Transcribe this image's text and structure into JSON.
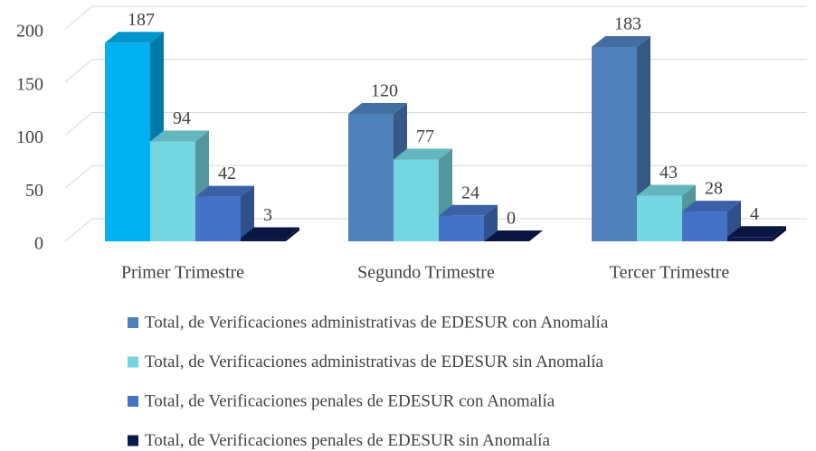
{
  "chart_data": {
    "type": "bar3d",
    "categories": [
      "Primer Trimestre",
      "Segundo Trimestre",
      "Tercer Trimestre"
    ],
    "series": [
      {
        "name": "Total, de Verificaciones administrativas de EDESUR con Anomalía",
        "color": "#4f81bd",
        "point_colors": [
          "#00b0f0",
          "#4f81bd",
          "#4f81bd"
        ],
        "values": [
          187,
          120,
          183
        ]
      },
      {
        "name": "Total, de Verificaciones administrativas de EDESUR sin Anomalía",
        "color": "#76d6df",
        "values": [
          94,
          77,
          43
        ]
      },
      {
        "name": "Total, de Verificaciones penales de EDESUR con Anomalía",
        "color": "#4472c4",
        "values": [
          42,
          24,
          28
        ]
      },
      {
        "name": "Total, de Verificaciones penales de EDESUR sin Anomalía",
        "color": "#0b1a4d",
        "values": [
          3,
          0,
          4
        ]
      }
    ],
    "ylim": [
      0,
      200
    ],
    "yticks": [
      0,
      50,
      100,
      150,
      200
    ],
    "grid": true
  }
}
